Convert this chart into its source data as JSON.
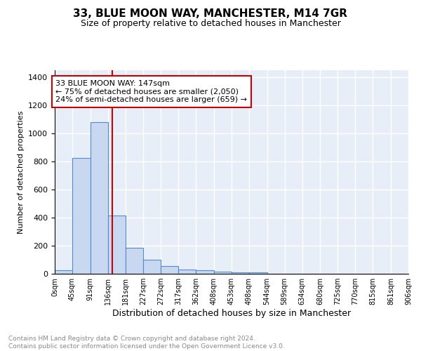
{
  "title1": "33, BLUE MOON WAY, MANCHESTER, M14 7GR",
  "title2": "Size of property relative to detached houses in Manchester",
  "xlabel": "Distribution of detached houses by size in Manchester",
  "ylabel": "Number of detached properties",
  "annotation_line1": "33 BLUE MOON WAY: 147sqm",
  "annotation_line2": "← 75% of detached houses are smaller (2,050)",
  "annotation_line3": "24% of semi-detached houses are larger (659) →",
  "footer1": "Contains HM Land Registry data © Crown copyright and database right 2024.",
  "footer2": "Contains public sector information licensed under the Open Government Licence v3.0.",
  "bar_edges": [
    0,
    45,
    91,
    136,
    181,
    227,
    272,
    317,
    362,
    408,
    453,
    498,
    544,
    589,
    634,
    680,
    725,
    770,
    815,
    861,
    906
  ],
  "bar_heights": [
    25,
    825,
    1080,
    415,
    185,
    100,
    57,
    32,
    25,
    14,
    12,
    12,
    0,
    0,
    0,
    0,
    0,
    0,
    0,
    0
  ],
  "bar_color": "#c8d8f0",
  "bar_edge_color": "#5588cc",
  "vline_x": 147,
  "vline_color": "#cc0000",
  "ylim": [
    0,
    1450
  ],
  "yticks": [
    0,
    200,
    400,
    600,
    800,
    1000,
    1200,
    1400
  ],
  "bg_color": "#e8eef8",
  "grid_color": "#ffffff",
  "annotation_box_color": "#ffffff",
  "annotation_box_edge": "#cc0000"
}
